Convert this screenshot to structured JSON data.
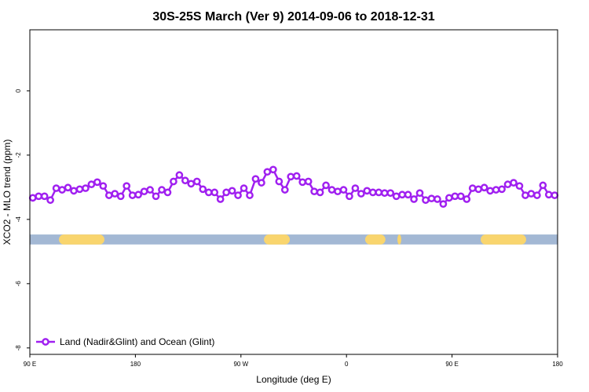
{
  "chart_data": {
    "type": "line",
    "title": "30S-25S March (Ver 9)   2014-09-06 to 2018-12-31",
    "xlabel": "Longitude (deg E)",
    "ylabel": "XCO2 - MLO trend (ppm)",
    "xlim": [
      90,
      540
    ],
    "xticks": [
      {
        "value": 90,
        "label": "90 E"
      },
      180,
      {
        "value": 270,
        "label": "90 W"
      },
      {
        "value": 360,
        "label": "0"
      },
      {
        "value": 450,
        "label": "90 E"
      },
      {
        "value": 540,
        "label": "180"
      }
    ],
    "ylim": [
      -8.2,
      1.9
    ],
    "yticks": [
      0,
      -2,
      -4,
      -6,
      -8
    ],
    "legend": "bottom-left",
    "strip_ylim": [
      -4.78,
      -4.47
    ],
    "strip_color": "#a3b8d4",
    "land_color": "#f9d56e",
    "land_bands": [
      [
        114.8,
        153.6
      ],
      [
        289.6,
        311.7
      ],
      [
        375.9,
        393.2
      ],
      [
        403.4,
        406.7
      ],
      [
        474.4,
        513.2
      ]
    ],
    "series": [
      {
        "name": "Land (Nadir&Glint) and Ocean (Glint)",
        "color": "#a020f0",
        "x": [
          92.5,
          97.5,
          102.5,
          107.5,
          112.5,
          117.5,
          122.5,
          127.5,
          132.5,
          137.5,
          142.5,
          147.5,
          152.5,
          157.5,
          162.5,
          167.5,
          172.5,
          177.5,
          182.5,
          187.5,
          192.5,
          197.5,
          202.5,
          207.5,
          212.5,
          217.5,
          222.5,
          227.5,
          232.5,
          237.5,
          242.5,
          247.5,
          252.5,
          257.5,
          262.5,
          267.5,
          272.5,
          277.5,
          282.5,
          287.5,
          292.5,
          297.5,
          302.5,
          307.5,
          312.5,
          317.5,
          322.5,
          327.5,
          332.5,
          337.5,
          342.5,
          347.5,
          352.5,
          357.5,
          362.5,
          367.5,
          372.5,
          377.5,
          382.5,
          387.5,
          392.5,
          397.5,
          402.5,
          407.5,
          412.5,
          417.5,
          422.5,
          427.5,
          432.5,
          437.5,
          442.5,
          447.5,
          452.5,
          457.5,
          462.5,
          467.5,
          472.5,
          477.5,
          482.5,
          487.5,
          492.5,
          497.5,
          502.5,
          507.5,
          512.5,
          517.5,
          522.5,
          527.5,
          532.5,
          537.5
        ],
        "values": [
          -3.33,
          -3.28,
          -3.28,
          -3.4,
          -3.03,
          -3.08,
          -3.01,
          -3.11,
          -3.06,
          -3.03,
          -2.91,
          -2.84,
          -2.96,
          -3.25,
          -3.2,
          -3.28,
          -2.96,
          -3.25,
          -3.23,
          -3.13,
          -3.08,
          -3.28,
          -3.08,
          -3.16,
          -2.82,
          -2.62,
          -2.79,
          -2.89,
          -2.82,
          -3.06,
          -3.16,
          -3.16,
          -3.37,
          -3.16,
          -3.11,
          -3.25,
          -3.03,
          -3.25,
          -2.74,
          -2.86,
          -2.52,
          -2.45,
          -2.82,
          -3.08,
          -2.67,
          -2.65,
          -2.84,
          -2.82,
          -3.13,
          -3.16,
          -2.94,
          -3.08,
          -3.13,
          -3.08,
          -3.28,
          -3.03,
          -3.2,
          -3.11,
          -3.16,
          -3.16,
          -3.18,
          -3.18,
          -3.28,
          -3.23,
          -3.23,
          -3.37,
          -3.18,
          -3.4,
          -3.35,
          -3.37,
          -3.52,
          -3.33,
          -3.28,
          -3.28,
          -3.37,
          -3.03,
          -3.06,
          -3.01,
          -3.11,
          -3.08,
          -3.06,
          -2.91,
          -2.86,
          -2.96,
          -3.25,
          -3.2,
          -3.25,
          -2.94,
          -3.23,
          -3.25
        ]
      }
    ]
  }
}
